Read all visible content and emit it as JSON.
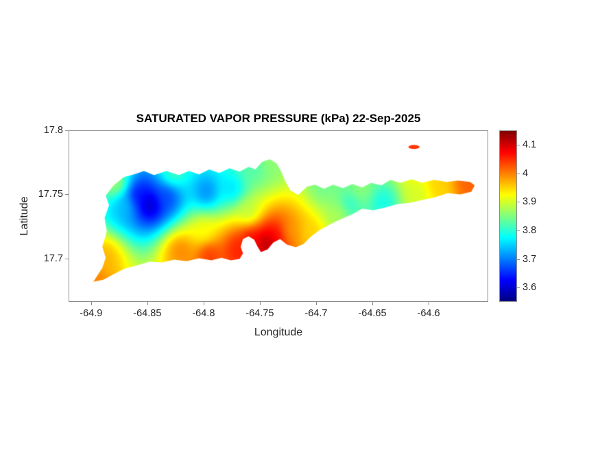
{
  "figure": {
    "title": "SATURATED VAPOR PRESSURE (kPa) 22-Sep-2025",
    "xlabel": "Longitude",
    "ylabel": "Latitude"
  },
  "chart_data": {
    "type": "heatmap",
    "title": "SATURATED VAPOR PRESSURE (kPa) 22-Sep-2025",
    "xlabel": "Longitude",
    "ylabel": "Latitude",
    "units": "kPa",
    "grid": false,
    "xlim": [
      -64.92,
      -64.547
    ],
    "ylim": [
      17.666,
      17.8
    ],
    "xtick_labels": [
      "-64.9",
      "-64.85",
      "-64.8",
      "-64.75",
      "-64.7",
      "-64.65",
      "-64.6"
    ],
    "ytick_labels": [
      "17.7",
      "17.75",
      "17.8"
    ],
    "colorbar": {
      "colormap": "jet",
      "position": "right",
      "limits": [
        3.55,
        4.15
      ],
      "tick_labels": [
        "3.6",
        "3.7",
        "3.8",
        "3.9",
        "4",
        "4.1"
      ]
    },
    "control_points": [
      [
        -64.848,
        17.742,
        3.57
      ],
      [
        -64.858,
        17.749,
        3.62
      ],
      [
        -64.833,
        17.748,
        3.66
      ],
      [
        -64.87,
        17.741,
        3.74
      ],
      [
        -64.797,
        17.752,
        3.7
      ],
      [
        -64.775,
        17.754,
        3.75
      ],
      [
        -64.878,
        17.758,
        3.88
      ],
      [
        -64.888,
        17.701,
        3.97
      ],
      [
        -64.896,
        17.683,
        4.0
      ],
      [
        -64.827,
        17.766,
        3.82
      ],
      [
        -64.8,
        17.72,
        3.92
      ],
      [
        -64.82,
        17.706,
        4.0
      ],
      [
        -64.795,
        17.703,
        4.05
      ],
      [
        -64.77,
        17.707,
        4.06
      ],
      [
        -64.757,
        17.714,
        4.08
      ],
      [
        -64.744,
        17.712,
        4.14
      ],
      [
        -64.735,
        17.718,
        4.08
      ],
      [
        -64.723,
        17.721,
        3.98
      ],
      [
        -64.76,
        17.736,
        3.88
      ],
      [
        -64.754,
        17.771,
        3.82
      ],
      [
        -64.741,
        17.774,
        3.86
      ],
      [
        -64.705,
        17.72,
        3.95
      ],
      [
        -64.693,
        17.756,
        3.84
      ],
      [
        -64.68,
        17.735,
        3.88
      ],
      [
        -64.67,
        17.742,
        3.79
      ],
      [
        -64.641,
        17.744,
        3.78
      ],
      [
        -64.66,
        17.753,
        3.86
      ],
      [
        -64.61,
        17.75,
        3.9
      ],
      [
        -64.59,
        17.7555,
        3.95
      ],
      [
        -64.565,
        17.7585,
        4.02
      ],
      [
        -64.613,
        17.787,
        4.05
      ]
    ],
    "island_outline": [
      [
        -64.898,
        17.6817
      ],
      [
        -64.89,
        17.6925
      ],
      [
        -64.887,
        17.7005
      ],
      [
        -64.89,
        17.709
      ],
      [
        -64.886,
        17.721
      ],
      [
        -64.888,
        17.7317
      ],
      [
        -64.884,
        17.7414
      ],
      [
        -64.887,
        17.749
      ],
      [
        -64.88,
        17.757
      ],
      [
        -64.871,
        17.7634
      ],
      [
        -64.862,
        17.7656
      ],
      [
        -64.853,
        17.7683
      ],
      [
        -64.844,
        17.765
      ],
      [
        -64.833,
        17.7683
      ],
      [
        -64.822,
        17.765
      ],
      [
        -64.813,
        17.7683
      ],
      [
        -64.804,
        17.7656
      ],
      [
        -64.795,
        17.7694
      ],
      [
        -64.786,
        17.7667
      ],
      [
        -64.777,
        17.7704
      ],
      [
        -64.768,
        17.7677
      ],
      [
        -64.76,
        17.7715
      ],
      [
        -64.754,
        17.7694
      ],
      [
        -64.748,
        17.7753
      ],
      [
        -64.741,
        17.7774
      ],
      [
        -64.735,
        17.7742
      ],
      [
        -64.731,
        17.7677
      ],
      [
        -64.727,
        17.7597
      ],
      [
        -64.723,
        17.7532
      ],
      [
        -64.716,
        17.7495
      ],
      [
        -64.708,
        17.756
      ],
      [
        -64.701,
        17.7575
      ],
      [
        -64.693,
        17.7543
      ],
      [
        -64.685,
        17.7575
      ],
      [
        -64.676,
        17.7548
      ],
      [
        -64.668,
        17.758
      ],
      [
        -64.659,
        17.7554
      ],
      [
        -64.651,
        17.759
      ],
      [
        -64.642,
        17.757
      ],
      [
        -64.634,
        17.7613
      ],
      [
        -64.625,
        17.759
      ],
      [
        -64.615,
        17.7618
      ],
      [
        -64.606,
        17.759
      ],
      [
        -64.595,
        17.7613
      ],
      [
        -64.584,
        17.7597
      ],
      [
        -64.574,
        17.7608
      ],
      [
        -64.563,
        17.7597
      ],
      [
        -64.559,
        17.757
      ],
      [
        -64.562,
        17.752
      ],
      [
        -64.572,
        17.7499
      ],
      [
        -64.583,
        17.751
      ],
      [
        -64.594,
        17.7478
      ],
      [
        -64.605,
        17.7457
      ],
      [
        -64.616,
        17.7435
      ],
      [
        -64.627,
        17.7425
      ],
      [
        -64.638,
        17.7398
      ],
      [
        -64.649,
        17.7376
      ],
      [
        -64.659,
        17.7387
      ],
      [
        -64.668,
        17.7344
      ],
      [
        -64.678,
        17.7306
      ],
      [
        -64.688,
        17.7263
      ],
      [
        -64.697,
        17.722
      ],
      [
        -64.705,
        17.7167
      ],
      [
        -64.711,
        17.7113
      ],
      [
        -64.718,
        17.7086
      ],
      [
        -64.726,
        17.7108
      ],
      [
        -64.732,
        17.7151
      ],
      [
        -64.738,
        17.7124
      ],
      [
        -64.743,
        17.707
      ],
      [
        -64.749,
        17.7048
      ],
      [
        -64.752,
        17.709
      ],
      [
        -64.755,
        17.7145
      ],
      [
        -64.76,
        17.7172
      ],
      [
        -64.765,
        17.715
      ],
      [
        -64.767,
        17.709
      ],
      [
        -64.765,
        17.7038
      ],
      [
        -64.768,
        17.6995
      ],
      [
        -64.776,
        17.6984
      ],
      [
        -64.784,
        17.7005
      ],
      [
        -64.793,
        17.6984
      ],
      [
        -64.804,
        17.7
      ],
      [
        -64.815,
        17.6978
      ],
      [
        -64.826,
        17.6989
      ],
      [
        -64.837,
        17.6968
      ],
      [
        -64.848,
        17.6973
      ],
      [
        -64.859,
        17.6946
      ],
      [
        -64.87,
        17.692
      ],
      [
        -64.88,
        17.6876
      ],
      [
        -64.889,
        17.6833
      ]
    ],
    "islets": [
      {
        "center": [
          -64.613,
          17.787
        ],
        "rx": 0.005,
        "ry": 0.0016
      }
    ]
  }
}
